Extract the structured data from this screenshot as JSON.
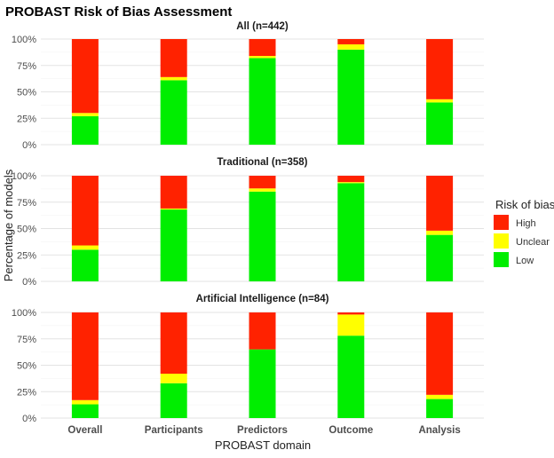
{
  "chart_data": {
    "type": "bar",
    "stacked": true,
    "title": "PROBAST Risk of Bias Assessment",
    "xlabel": "PROBAST domain",
    "ylabel": "Percentage of models",
    "ylim": [
      0,
      100
    ],
    "yticks": [
      "0%",
      "25%",
      "50%",
      "75%",
      "100%"
    ],
    "categories": [
      "Overall",
      "Participants",
      "Predictors",
      "Outcome",
      "Analysis"
    ],
    "legend": {
      "title": "Risk of bias",
      "placement": "right",
      "entries": [
        {
          "name": "High",
          "color": "#ff2200"
        },
        {
          "name": "Unclear",
          "color": "#ffff00"
        },
        {
          "name": "Low",
          "color": "#00ee00"
        }
      ]
    },
    "grid": true,
    "panels": [
      {
        "title": "All (n=442)",
        "series": [
          {
            "name": "Low",
            "values": [
              27,
              61,
              82,
              90,
              40
            ]
          },
          {
            "name": "Unclear",
            "values": [
              3,
              3,
              2,
              5,
              3
            ]
          },
          {
            "name": "High",
            "values": [
              70,
              36,
              16,
              5,
              57
            ]
          }
        ]
      },
      {
        "title": "Traditional (n=358)",
        "series": [
          {
            "name": "Low",
            "values": [
              30,
              68,
              85,
              93,
              44
            ]
          },
          {
            "name": "Unclear",
            "values": [
              4,
              1,
              3,
              1,
              4
            ]
          },
          {
            "name": "High",
            "values": [
              66,
              31,
              12,
              6,
              52
            ]
          }
        ]
      },
      {
        "title": "Artificial Intelligence (n=84)",
        "series": [
          {
            "name": "Low",
            "values": [
              13,
              33,
              65,
              78,
              18
            ]
          },
          {
            "name": "Unclear",
            "values": [
              4,
              9,
              0,
              20,
              4
            ]
          },
          {
            "name": "High",
            "values": [
              83,
              58,
              35,
              2,
              78
            ]
          }
        ]
      }
    ]
  }
}
